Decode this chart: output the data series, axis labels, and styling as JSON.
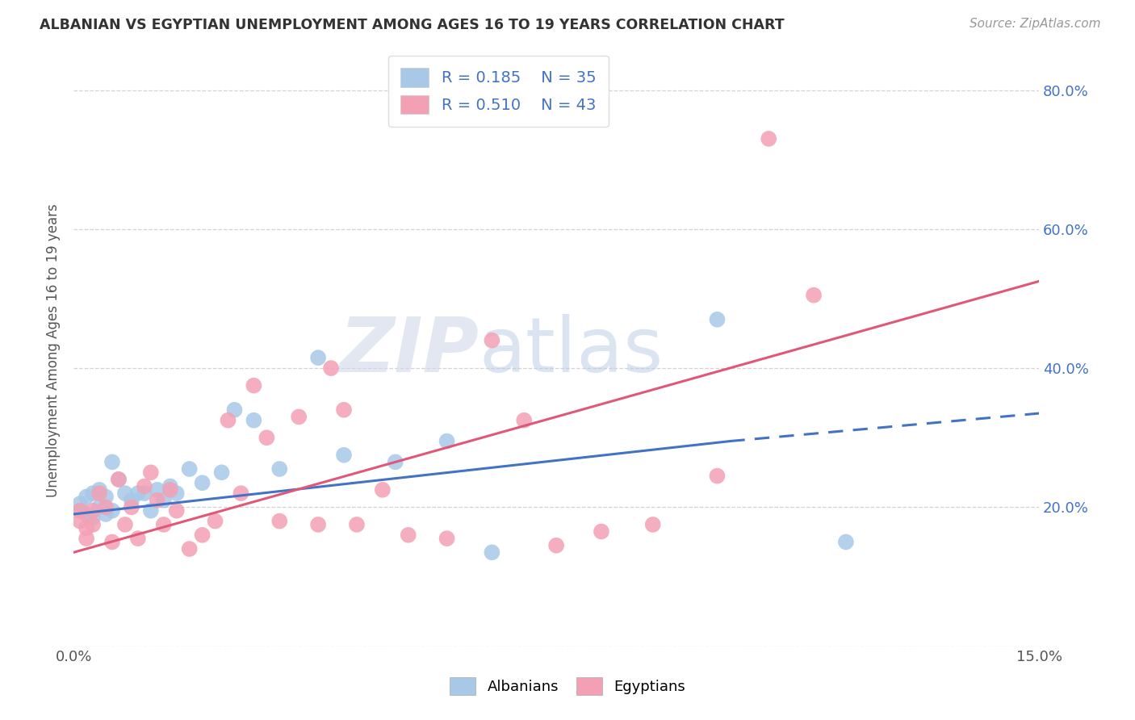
{
  "title": "ALBANIAN VS EGYPTIAN UNEMPLOYMENT AMONG AGES 16 TO 19 YEARS CORRELATION CHART",
  "source": "Source: ZipAtlas.com",
  "ylabel": "Unemployment Among Ages 16 to 19 years",
  "xlim": [
    0.0,
    0.15
  ],
  "ylim": [
    0.0,
    0.85
  ],
  "albanian_color": "#a8c8e8",
  "egyptian_color": "#f4a0b4",
  "albanian_line_color": "#4472c4",
  "egyptian_line_color": "#e05878",
  "albanian_R": 0.185,
  "albanian_N": 35,
  "egyptian_R": 0.51,
  "egyptian_N": 43,
  "albanian_scatter_x": [
    0.001,
    0.001,
    0.002,
    0.002,
    0.003,
    0.003,
    0.004,
    0.004,
    0.005,
    0.005,
    0.006,
    0.006,
    0.007,
    0.008,
    0.009,
    0.01,
    0.011,
    0.012,
    0.013,
    0.014,
    0.015,
    0.016,
    0.018,
    0.02,
    0.023,
    0.025,
    0.028,
    0.032,
    0.038,
    0.042,
    0.05,
    0.058,
    0.065,
    0.1,
    0.12
  ],
  "albanian_scatter_y": [
    0.195,
    0.205,
    0.19,
    0.215,
    0.185,
    0.22,
    0.2,
    0.225,
    0.215,
    0.19,
    0.265,
    0.195,
    0.24,
    0.22,
    0.21,
    0.22,
    0.22,
    0.195,
    0.225,
    0.21,
    0.23,
    0.22,
    0.255,
    0.235,
    0.25,
    0.34,
    0.325,
    0.255,
    0.415,
    0.275,
    0.265,
    0.295,
    0.135,
    0.47,
    0.15
  ],
  "egyptian_scatter_x": [
    0.001,
    0.001,
    0.002,
    0.002,
    0.003,
    0.003,
    0.004,
    0.005,
    0.006,
    0.007,
    0.008,
    0.009,
    0.01,
    0.011,
    0.012,
    0.013,
    0.014,
    0.015,
    0.016,
    0.018,
    0.02,
    0.022,
    0.024,
    0.026,
    0.028,
    0.03,
    0.032,
    0.035,
    0.038,
    0.04,
    0.042,
    0.044,
    0.048,
    0.052,
    0.058,
    0.065,
    0.07,
    0.075,
    0.082,
    0.09,
    0.1,
    0.108,
    0.115
  ],
  "egyptian_scatter_y": [
    0.18,
    0.195,
    0.155,
    0.17,
    0.175,
    0.195,
    0.22,
    0.2,
    0.15,
    0.24,
    0.175,
    0.2,
    0.155,
    0.23,
    0.25,
    0.21,
    0.175,
    0.225,
    0.195,
    0.14,
    0.16,
    0.18,
    0.325,
    0.22,
    0.375,
    0.3,
    0.18,
    0.33,
    0.175,
    0.4,
    0.34,
    0.175,
    0.225,
    0.16,
    0.155,
    0.44,
    0.325,
    0.145,
    0.165,
    0.175,
    0.245,
    0.73,
    0.505
  ],
  "watermark_zip": "ZIP",
  "watermark_atlas": "atlas",
  "background_color": "#ffffff",
  "grid_color": "#c8c8c8",
  "right_tick_color": "#4472c4",
  "legend_text_color": "#4472c4"
}
